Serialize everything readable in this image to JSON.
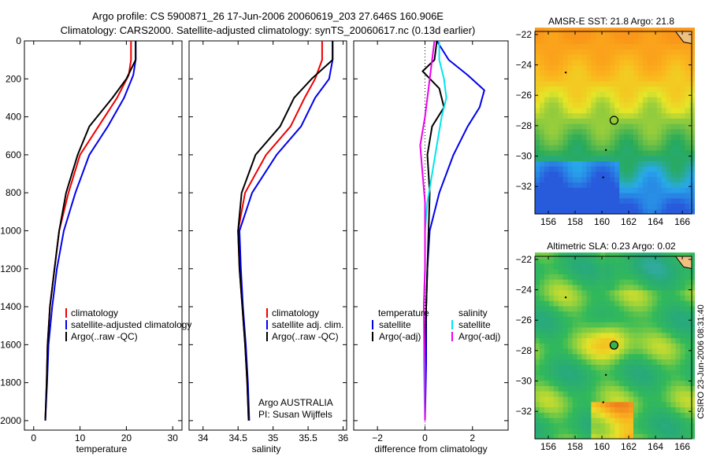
{
  "header": {
    "line1": "Argo profile: CS 5900871_26 17-Jun-2006 20060619_203 27.646S 160.906E",
    "line2": "Climatology: CARS2000. Satellite-adjusted climatology: synTS_20060617.nc (0.13d earlier)"
  },
  "side_text": "CSIRO 23-Jun-2006 08:31:40",
  "colors": {
    "red": "#ee0000",
    "blue": "#0000ee",
    "black": "#000000",
    "cyan": "#00e5ee",
    "magenta": "#ee00ee"
  },
  "panels": {
    "temperature": {
      "xlabel": "temperature",
      "legend": [
        "climatology",
        "satellite-adjusted climatology",
        "Argo(..raw -QC)"
      ]
    },
    "salinity": {
      "xlabel": "salinity",
      "legend": [
        "climatology",
        "satellite adj. clim.",
        "Argo(..raw -QC)"
      ],
      "note_line1": "Argo AUSTRALIA",
      "note_line2": "PI: Susan Wijffels"
    },
    "difference": {
      "xlabel": "difference from climatology",
      "legend_t_title": "temperature",
      "legend_s_title": "salinity",
      "legend_t": [
        "satellite",
        "Argo(-adj)"
      ],
      "legend_s": [
        "satellite",
        "Argo(-adj)"
      ]
    },
    "sst_map": {
      "title": "AMSR-E SST: 21.8 Argo: 21.8"
    },
    "sla_map": {
      "title": "Altimetric SLA: 0.23 Argo: 0.02"
    }
  },
  "chart_data": [
    {
      "type": "line",
      "name": "temperature",
      "xlabel": "temperature",
      "ylabel": "",
      "xlim": [
        -2,
        32
      ],
      "ylim": [
        2050,
        0
      ],
      "xticks": [
        0,
        10,
        20,
        30
      ],
      "yticks": [
        0,
        200,
        400,
        600,
        800,
        1000,
        1200,
        1400,
        1600,
        1800,
        2000
      ],
      "series": [
        {
          "name": "climatology",
          "color": "red",
          "x": [
            21,
            21,
            20.5,
            18,
            14,
            10,
            7.5,
            5.5,
            4.5,
            3.5,
            3,
            2.8,
            2.5
          ],
          "y": [
            0,
            100,
            180,
            300,
            450,
            600,
            800,
            1000,
            1200,
            1400,
            1600,
            1800,
            2000
          ]
        },
        {
          "name": "satellite-adjusted climatology",
          "color": "blue",
          "x": [
            22,
            22,
            21.5,
            19.5,
            16,
            12,
            9,
            6.5,
            5,
            4,
            3.2,
            2.9,
            2.5
          ],
          "y": [
            0,
            100,
            180,
            300,
            450,
            600,
            800,
            1000,
            1200,
            1400,
            1600,
            1800,
            2000
          ]
        },
        {
          "name": "Argo(..raw -QC)",
          "color": "black",
          "x": [
            22,
            22,
            20,
            17,
            12,
            9.5,
            7,
            5.5,
            4.5,
            3.5,
            3,
            2.8,
            2.5
          ],
          "y": [
            0,
            100,
            200,
            300,
            450,
            600,
            800,
            1000,
            1200,
            1400,
            1600,
            1800,
            2000
          ]
        }
      ]
    },
    {
      "type": "line",
      "name": "salinity",
      "xlabel": "salinity",
      "ylabel": "",
      "xlim": [
        33.8,
        36.05
      ],
      "ylim": [
        2050,
        0
      ],
      "xticks": [
        34,
        34.5,
        35,
        35.5,
        36
      ],
      "xticklabels": [
        "34",
        "34.5",
        "35",
        "35.5",
        "36"
      ],
      "yticks": [
        0,
        200,
        400,
        600,
        800,
        1000,
        1200,
        1400,
        1600,
        1800,
        2000
      ],
      "series": [
        {
          "name": "climatology",
          "color": "red",
          "x": [
            35.7,
            35.7,
            35.6,
            35.45,
            35.25,
            34.9,
            34.6,
            34.5,
            34.52,
            34.56,
            34.6,
            34.63,
            34.65
          ],
          "y": [
            0,
            100,
            200,
            300,
            450,
            600,
            800,
            1000,
            1200,
            1400,
            1600,
            1800,
            2000
          ]
        },
        {
          "name": "satellite adj. clim.",
          "color": "blue",
          "x": [
            35.85,
            35.85,
            35.8,
            35.6,
            35.4,
            35.05,
            34.7,
            34.52,
            34.54,
            34.57,
            34.61,
            34.64,
            34.66
          ],
          "y": [
            0,
            100,
            200,
            300,
            450,
            600,
            800,
            1000,
            1200,
            1400,
            1600,
            1800,
            2000
          ]
        },
        {
          "name": "Argo(..raw -QC)",
          "color": "black",
          "x": [
            35.85,
            35.85,
            35.55,
            35.3,
            35.1,
            34.75,
            34.55,
            34.5,
            34.52,
            34.56,
            34.6,
            34.63,
            34.65
          ],
          "y": [
            0,
            100,
            200,
            300,
            450,
            600,
            800,
            1000,
            1200,
            1400,
            1600,
            1800,
            2000
          ]
        }
      ]
    },
    {
      "type": "line",
      "name": "difference from climatology",
      "xlabel": "difference from climatology",
      "ylabel": "",
      "xlim": [
        -3,
        3.5
      ],
      "ylim": [
        2050,
        0
      ],
      "xticks": [
        -2,
        0,
        2
      ],
      "yticks": [
        0,
        200,
        400,
        600,
        800,
        1000,
        1200,
        1400,
        1600,
        1800,
        2000
      ],
      "series": [
        {
          "name": "temperature satellite",
          "color": "blue",
          "x": [
            0.5,
            1.0,
            1.8,
            2.5,
            2.3,
            1.8,
            1.2,
            0.6,
            0.2,
            0.1,
            0.05,
            0.05,
            0.0
          ],
          "y": [
            0,
            100,
            180,
            260,
            350,
            450,
            600,
            800,
            1000,
            1200,
            1400,
            1700,
            2000
          ]
        },
        {
          "name": "temperature Argo(-adj)",
          "color": "black",
          "x": [
            0.5,
            0.4,
            -0.1,
            0.6,
            0.8,
            0.3,
            0.1,
            0.2,
            0.15,
            0.1,
            0.05,
            0.0,
            0.0
          ],
          "y": [
            0,
            100,
            160,
            250,
            350,
            450,
            600,
            800,
            1000,
            1200,
            1400,
            1700,
            2000
          ]
        },
        {
          "name": "salinity satellite",
          "color": "cyan",
          "x": [
            0.6,
            0.6,
            0.8,
            0.9,
            0.7,
            0.5,
            0.3,
            0.1,
            0.0,
            0.0,
            -0.05,
            -0.05,
            0.0
          ],
          "y": [
            0,
            100,
            200,
            300,
            400,
            550,
            700,
            850,
            1000,
            1200,
            1400,
            1700,
            2000
          ]
        },
        {
          "name": "salinity Argo(-adj)",
          "color": "magenta",
          "x": [
            0.4,
            0.3,
            0.2,
            0.1,
            0.0,
            -0.2,
            -0.1,
            0.0,
            0.0,
            0.0,
            -0.05,
            0.0,
            0.0
          ],
          "y": [
            0,
            100,
            200,
            300,
            400,
            550,
            700,
            850,
            1000,
            1200,
            1400,
            1700,
            2000
          ]
        }
      ]
    },
    {
      "type": "heatmap",
      "name": "AMSR-E SST",
      "title": "AMSR-E SST: 21.8 Argo: 21.8",
      "xlim": [
        155,
        166.7
      ],
      "ylim": [
        -33.8,
        -21.8
      ],
      "xticks": [
        156,
        158,
        160,
        162,
        164,
        166
      ],
      "yticks": [
        -22,
        -24,
        -26,
        -28,
        -30,
        -32
      ],
      "argo_position": {
        "lon": 160.906,
        "lat": -27.646
      }
    },
    {
      "type": "heatmap",
      "name": "Altimetric SLA",
      "title": "Altimetric SLA: 0.23 Argo: 0.02",
      "xlim": [
        155,
        166.7
      ],
      "ylim": [
        -33.8,
        -21.8
      ],
      "xticks": [
        156,
        158,
        160,
        162,
        164,
        166
      ],
      "yticks": [
        -22,
        -24,
        -26,
        -28,
        -30,
        -32
      ],
      "argo_position": {
        "lon": 160.906,
        "lat": -27.646
      }
    }
  ]
}
